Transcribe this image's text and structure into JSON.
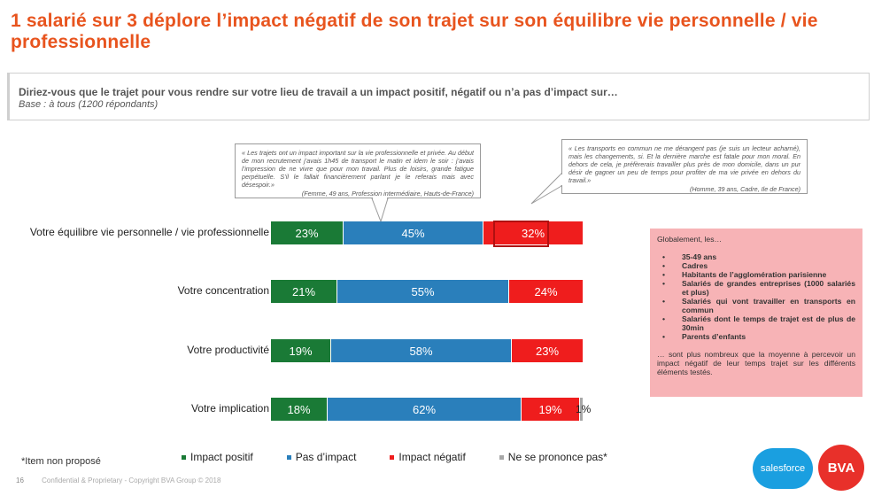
{
  "slide": {
    "title": "1 salarié sur 3 déplore l’impact négatif de son trajet sur son équilibre vie personnelle / vie professionnelle",
    "question": "Diriez-vous que le trajet pour vous rendre sur votre lieu de travail a un impact positif, négatif ou n’a pas d’impact sur…",
    "base": "Base : à tous (1200 répondants)",
    "note": "*Item non proposé",
    "page_number": "16",
    "footer": "Confidential & Proprietary - Copyright BVA Group © 2018"
  },
  "quotes": [
    {
      "text": "« Les trajets ont un impact important sur la vie professionnelle et privée. Au début de mon recrutement j’avais 1h45 de transport le matin et idem le soir : j’avais l’impression de ne vivre que pour mon travail. Plus de loisirs, grande fatigue perpétuelle. S’il le fallait financièrement parlant je le referais mais avec désespoir.»",
      "author": "(Femme, 49 ans, Profession intermédiaire, Hauts-de-France)"
    },
    {
      "text": "« Les transports en commun ne me dérangent pas (je suis un lecteur acharné), mais les changements, si. Et la dernière marche est fatale pour mon moral. En dehors de cela, je préfèrerais travailler plus près de mon domicile, dans un pur désir de gagner un peu de temps pour profiter de ma vie privée en dehors du travail.»",
      "author": "(Homme, 39 ans, Cadre, Ile de France)"
    }
  ],
  "sidebox": {
    "intro": "Globalement, les…",
    "items": [
      "35-49 ans",
      "Cadres",
      "Habitants de l’agglomération parisienne",
      "Salariés de grandes entreprises (1000 salariés et plus)",
      "Salariés qui vont travailler en transports en commun",
      "Salariés dont le temps de trajet est de plus de 30min",
      "Parents d’enfants"
    ],
    "outro": "… sont plus nombreux que la moyenne à percevoir un impact négatif de leur temps trajet sur les différents éléments testés."
  },
  "logos": {
    "salesforce": "salesforce",
    "bva": "BVA"
  },
  "colors": {
    "positive": "#1a7a36",
    "neutral": "#2a7fbb",
    "negative": "#ef1d1d",
    "no_answer": "#a7a7a7",
    "title": "#e8541e",
    "highlight": "#b01010"
  },
  "chart_data": {
    "type": "bar",
    "orientation": "horizontal",
    "stacked": true,
    "unit": "%",
    "categories": [
      "Votre équilibre vie personnelle / vie professionnelle",
      "Votre concentration",
      "Votre productivité",
      "Votre implication"
    ],
    "series": [
      {
        "name": "Impact positif",
        "values": [
          23,
          21,
          19,
          18
        ],
        "labels": [
          "23%",
          "21%",
          "19%",
          "18%"
        ]
      },
      {
        "name": "Pas d’impact",
        "values": [
          45,
          55,
          58,
          62
        ],
        "labels": [
          "45%",
          "55%",
          "58%",
          "62%"
        ]
      },
      {
        "name": "Impact négatif",
        "values": [
          32,
          24,
          23,
          19
        ],
        "labels": [
          "32%",
          "24%",
          "23%",
          "19%"
        ]
      },
      {
        "name": "Ne se prononce pas*",
        "values": [
          0,
          0,
          0,
          1
        ],
        "labels": [
          "",
          "",
          "",
          "1%"
        ]
      }
    ],
    "xlim": [
      0,
      100
    ],
    "legend_position": "bottom",
    "highlighted": {
      "category": 0,
      "series": 2
    }
  }
}
